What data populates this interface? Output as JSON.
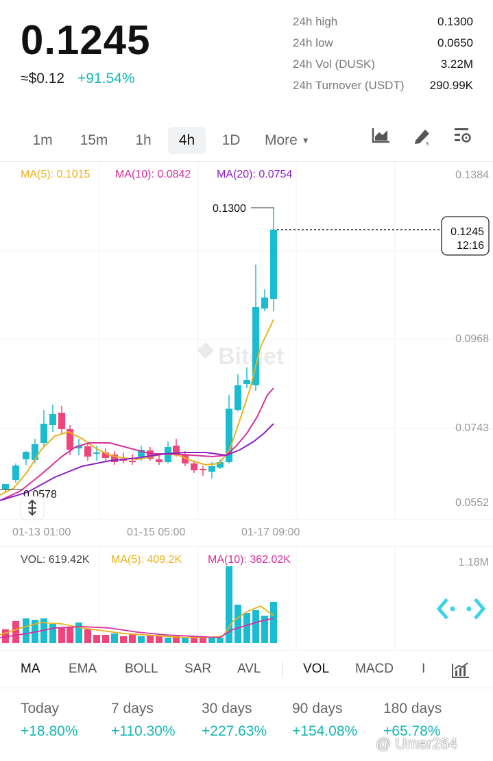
{
  "header": {
    "price": "0.1245",
    "usd_price": "≈$0.12",
    "change": "+91.54%",
    "stats": [
      {
        "label": "24h high",
        "value": "0.1300"
      },
      {
        "label": "24h low",
        "value": "0.0650"
      },
      {
        "label": "24h Vol (DUSK)",
        "value": "3.22M"
      },
      {
        "label": "24h Turnover (USDT)",
        "value": "290.99K"
      }
    ]
  },
  "timeframes": {
    "items": [
      "1m",
      "15m",
      "1h",
      "4h",
      "1D"
    ],
    "active": "4h",
    "more_label": "More"
  },
  "chart": {
    "ma5": "MA(5): 0.1015",
    "ma10": "MA(10): 0.0842",
    "ma20": "MA(20): 0.0754",
    "y_axis": [
      "0.1384",
      "0.0968",
      "0.0743",
      "0.0552"
    ],
    "x_axis": [
      "01-13 01:00",
      "01-15 05:00",
      "01-17 09:00"
    ],
    "high_marker": "0.1300",
    "low_marker": "0.0578",
    "current_price": "0.1245",
    "countdown": "12:16",
    "watermark": "Bitget"
  },
  "volume": {
    "vol": "VOL: 619.42K",
    "ma5": "MA(5): 409.2K",
    "ma10": "MA(10): 362.02K",
    "axis_max": "1.18M"
  },
  "indicators": {
    "items": [
      "MA",
      "EMA",
      "BOLL",
      "SAR",
      "AVL",
      "VOL",
      "MACD",
      "I"
    ]
  },
  "performance": [
    {
      "label": "Today",
      "value": "+18.80%"
    },
    {
      "label": "7 days",
      "value": "+110.30%"
    },
    {
      "label": "30 days",
      "value": "+227.63%"
    },
    {
      "label": "90 days",
      "value": "+154.08%"
    },
    {
      "label": "180 days",
      "value": "+65.78%"
    }
  ],
  "credit": "@ Umer264",
  "colors": {
    "up": "#1bbcd0",
    "down": "#f0457a",
    "ma5": "#e9b21c",
    "ma10": "#d62f9c",
    "ma20": "#8a1fbf"
  }
}
